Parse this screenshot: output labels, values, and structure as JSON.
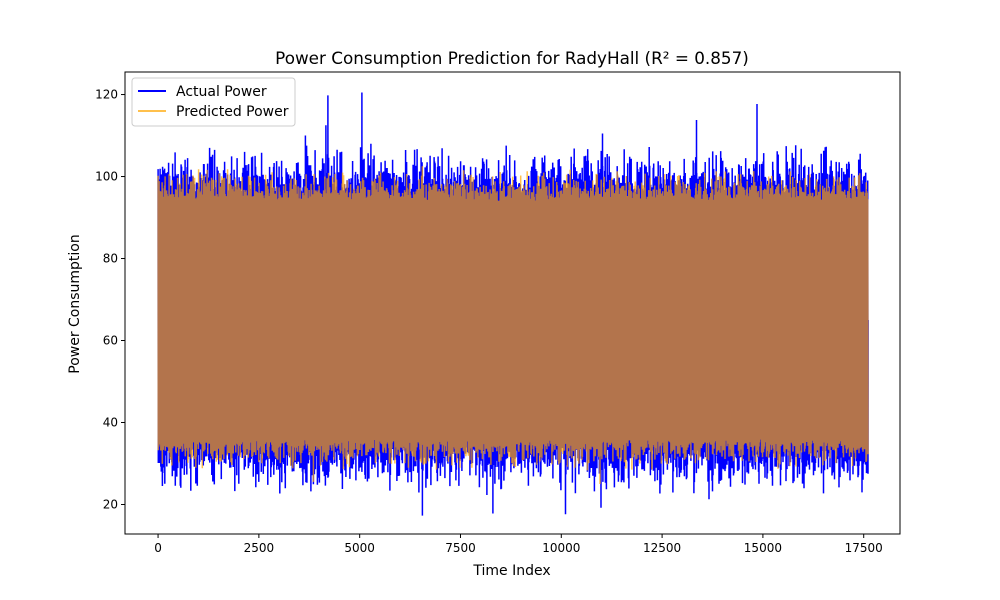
{
  "chart_data": {
    "type": "line",
    "title": "Power Consumption Prediction for RadyHall (R² = 0.857)",
    "xlabel": "Time Index",
    "ylabel": "Power Consumption",
    "xlim": [
      -820,
      18400
    ],
    "ylim": [
      12.8,
      125.5
    ],
    "x_ticks": [
      0,
      2500,
      5000,
      7500,
      10000,
      12500,
      15000,
      17500
    ],
    "y_ticks": [
      20,
      40,
      60,
      80,
      100,
      120
    ],
    "grid": false,
    "legend_position": "upper-left",
    "x_range": [
      0,
      17600
    ],
    "colors": {
      "actual": "#0000ff",
      "predicted": "#ffa500"
    },
    "band": {
      "actual": {
        "lower": 34,
        "upper": 96
      },
      "predicted": {
        "lower": 36,
        "upper": 94
      }
    },
    "series": [
      {
        "name": "Actual Power",
        "color": "#0000ff",
        "notable_points": [
          {
            "x": 0,
            "y": 97
          },
          {
            "x": 100,
            "y": 24.5
          },
          {
            "x": 3650,
            "y": 110
          },
          {
            "x": 4150,
            "y": 112.5
          },
          {
            "x": 4200,
            "y": 119.8
          },
          {
            "x": 5050,
            "y": 120.5
          },
          {
            "x": 5270,
            "y": 108
          },
          {
            "x": 6550,
            "y": 17.3
          },
          {
            "x": 8300,
            "y": 17.8
          },
          {
            "x": 10100,
            "y": 17.6
          },
          {
            "x": 10980,
            "y": 19.2
          },
          {
            "x": 11020,
            "y": 110.5
          },
          {
            "x": 13350,
            "y": 113.8
          },
          {
            "x": 13650,
            "y": 21.3
          },
          {
            "x": 14850,
            "y": 117.7
          },
          {
            "x": 16500,
            "y": 22.7
          },
          {
            "x": 17600,
            "y": 27.5
          }
        ]
      },
      {
        "name": "Predicted Power",
        "color": "#ffa500",
        "notable_points": [
          {
            "x": 3850,
            "y": 25.5
          },
          {
            "x": 4130,
            "y": 100
          },
          {
            "x": 6550,
            "y": 102.5
          },
          {
            "x": 8800,
            "y": 27
          },
          {
            "x": 10950,
            "y": 25
          },
          {
            "x": 13950,
            "y": 100
          }
        ]
      }
    ]
  }
}
